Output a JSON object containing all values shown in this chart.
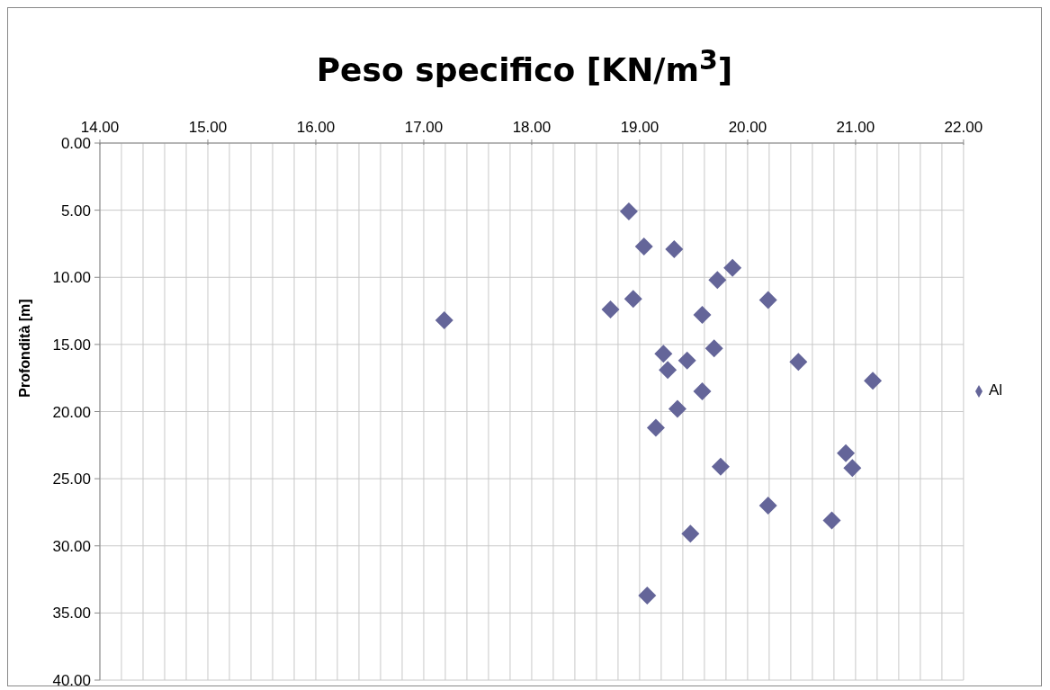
{
  "chart_data": {
    "type": "scatter",
    "title": "Peso specifico [KN/m$^{3}$]",
    "ylabel": "Profondità [m]",
    "xlim": [
      14,
      22
    ],
    "ylim": [
      40,
      0
    ],
    "xticks": [
      {
        "value": 14,
        "label": "14.00"
      },
      {
        "value": 14.2,
        "label": null
      },
      {
        "value": 14.4,
        "label": null
      },
      {
        "value": 14.6,
        "label": null
      },
      {
        "value": 14.8,
        "label": null
      },
      {
        "value": 15,
        "label": "15.00"
      },
      {
        "value": 15.2,
        "label": null
      },
      {
        "value": 15.4,
        "label": null
      },
      {
        "value": 15.6,
        "label": null
      },
      {
        "value": 15.8,
        "label": null
      },
      {
        "value": 16,
        "label": "16.00"
      },
      {
        "value": 16.2,
        "label": null
      },
      {
        "value": 16.4,
        "label": null
      },
      {
        "value": 16.6,
        "label": null
      },
      {
        "value": 16.8,
        "label": null
      },
      {
        "value": 17,
        "label": "17.00"
      },
      {
        "value": 17.2,
        "label": null
      },
      {
        "value": 17.4,
        "label": null
      },
      {
        "value": 17.6,
        "label": null
      },
      {
        "value": 17.8,
        "label": null
      },
      {
        "value": 18,
        "label": "18.00"
      },
      {
        "value": 18.2,
        "label": null
      },
      {
        "value": 18.4,
        "label": null
      },
      {
        "value": 18.6,
        "label": null
      },
      {
        "value": 18.8,
        "label": null
      },
      {
        "value": 19,
        "label": "19.00"
      },
      {
        "value": 19.2,
        "label": null
      },
      {
        "value": 19.4,
        "label": null
      },
      {
        "value": 19.6,
        "label": null
      },
      {
        "value": 19.8,
        "label": null
      },
      {
        "value": 20,
        "label": "20.00"
      },
      {
        "value": 20.2,
        "label": null
      },
      {
        "value": 20.4,
        "label": null
      },
      {
        "value": 20.6,
        "label": null
      },
      {
        "value": 20.8,
        "label": null
      },
      {
        "value": 21,
        "label": "21.00"
      },
      {
        "value": 21.2,
        "label": null
      },
      {
        "value": 21.4,
        "label": null
      },
      {
        "value": 21.6,
        "label": null
      },
      {
        "value": 21.8,
        "label": null
      },
      {
        "value": 22,
        "label": "22.00"
      }
    ],
    "yticks": [
      {
        "value": 0,
        "label": "0.00"
      },
      {
        "value": 5,
        "label": "5.00"
      },
      {
        "value": 10,
        "label": "10.00"
      },
      {
        "value": 15,
        "label": "15.00"
      },
      {
        "value": 20,
        "label": "20.00"
      },
      {
        "value": 25,
        "label": "25.00"
      },
      {
        "value": 30,
        "label": "30.00"
      },
      {
        "value": 35,
        "label": "35.00"
      },
      {
        "value": 40,
        "label": "40.00"
      }
    ],
    "grid": true,
    "legend": "right",
    "marker": "diamond",
    "series": [
      {
        "name": "Al",
        "color": "#646599",
        "x": [
          18.9,
          19.04,
          19.32,
          19.86,
          19.72,
          18.94,
          20.19,
          18.73,
          17.19,
          19.58,
          19.69,
          19.22,
          19.44,
          20.47,
          19.26,
          21.16,
          19.58,
          19.35,
          19.15,
          20.91,
          20.97,
          19.75,
          20.19,
          20.78,
          19.47,
          19.07
        ],
        "values": [
          5.1,
          7.7,
          7.9,
          9.3,
          10.2,
          11.6,
          11.7,
          12.4,
          13.2,
          12.8,
          15.3,
          15.7,
          16.2,
          16.3,
          16.9,
          17.7,
          18.5,
          19.8,
          21.2,
          23.1,
          24.2,
          24.1,
          27.0,
          28.1,
          29.1,
          33.7
        ]
      }
    ]
  }
}
